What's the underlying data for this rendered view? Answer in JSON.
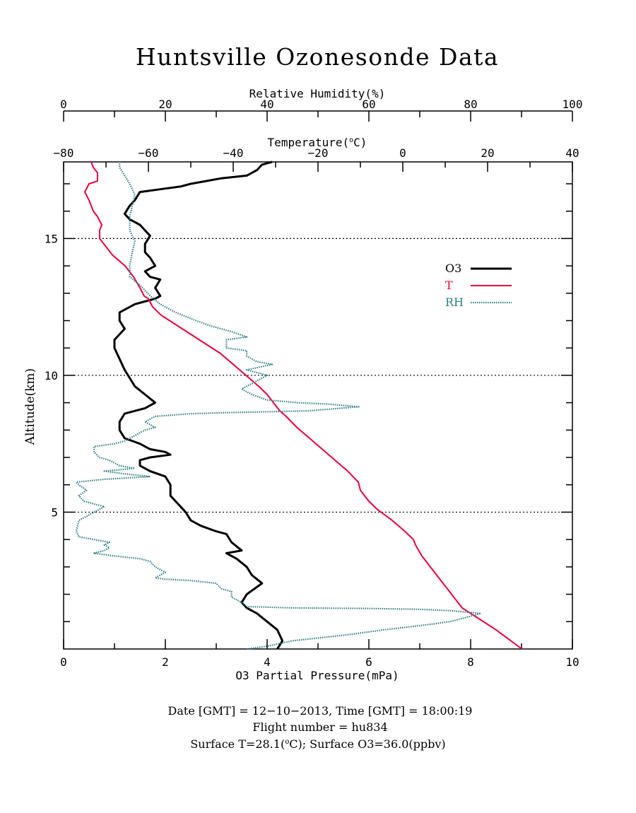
{
  "chart_data": {
    "type": "line",
    "title": "Huntsville Ozonesonde Data",
    "axes": {
      "rh": {
        "label": "Relative Humidity(%)",
        "min": 0,
        "max": 100,
        "ticks": [
          "0",
          "20",
          "40",
          "60",
          "80",
          "100"
        ]
      },
      "temp": {
        "label_main": "Temperature(",
        "label_sup": "o",
        "label_end": "C)",
        "min": -80,
        "max": 40,
        "ticks": [
          "−80",
          "−60",
          "−40",
          "−20",
          "0",
          "20",
          "40"
        ]
      },
      "o3": {
        "label": "O3 Partial Pressure(mPa)",
        "min": 0,
        "max": 10,
        "ticks": [
          "0",
          "2",
          "4",
          "6",
          "8",
          "10"
        ]
      },
      "alt": {
        "label": "Altitude(km)",
        "min": 0,
        "max": 17.8,
        "ticks": [
          5,
          10,
          15
        ],
        "tick_labels": [
          "5",
          "10",
          "15"
        ]
      }
    },
    "gridlines_y": [
      5,
      10,
      15
    ],
    "legend_position": "upper-right",
    "series": [
      {
        "name": "O3",
        "color": "#000000",
        "axis": "o3",
        "points": [
          [
            4.2,
            0.0
          ],
          [
            4.3,
            0.3
          ],
          [
            4.2,
            0.7
          ],
          [
            4.0,
            1.0
          ],
          [
            3.8,
            1.3
          ],
          [
            3.6,
            1.5
          ],
          [
            3.5,
            1.7
          ],
          [
            3.6,
            2.0
          ],
          [
            3.9,
            2.4
          ],
          [
            3.7,
            2.7
          ],
          [
            3.6,
            3.0
          ],
          [
            3.4,
            3.3
          ],
          [
            3.2,
            3.5
          ],
          [
            3.5,
            3.6
          ],
          [
            3.3,
            3.9
          ],
          [
            3.2,
            4.2
          ],
          [
            3.0,
            4.3
          ],
          [
            2.7,
            4.5
          ],
          [
            2.5,
            4.7
          ],
          [
            2.4,
            5.0
          ],
          [
            2.3,
            5.2
          ],
          [
            2.1,
            5.6
          ],
          [
            2.1,
            6.0
          ],
          [
            2.0,
            6.3
          ],
          [
            1.7,
            6.5
          ],
          [
            1.5,
            6.7
          ],
          [
            1.5,
            6.9
          ],
          [
            1.7,
            7.0
          ],
          [
            2.1,
            7.1
          ],
          [
            2.0,
            7.2
          ],
          [
            1.7,
            7.3
          ],
          [
            1.5,
            7.5
          ],
          [
            1.2,
            7.7
          ],
          [
            1.1,
            8.0
          ],
          [
            1.1,
            8.3
          ],
          [
            1.2,
            8.6
          ],
          [
            1.6,
            8.8
          ],
          [
            1.8,
            9.0
          ],
          [
            1.6,
            9.3
          ],
          [
            1.4,
            9.6
          ],
          [
            1.3,
            9.9
          ],
          [
            1.2,
            10.2
          ],
          [
            1.1,
            10.6
          ],
          [
            1.0,
            11.0
          ],
          [
            1.0,
            11.3
          ],
          [
            1.2,
            11.7
          ],
          [
            1.1,
            12.0
          ],
          [
            1.1,
            12.3
          ],
          [
            1.4,
            12.6
          ],
          [
            1.8,
            12.8
          ],
          [
            1.9,
            12.9
          ],
          [
            1.8,
            13.2
          ],
          [
            1.9,
            13.5
          ],
          [
            1.7,
            13.6
          ],
          [
            1.6,
            13.8
          ],
          [
            1.8,
            14.0
          ],
          [
            1.7,
            14.3
          ],
          [
            1.6,
            14.5
          ],
          [
            1.6,
            14.8
          ],
          [
            1.7,
            15.1
          ],
          [
            1.6,
            15.3
          ],
          [
            1.5,
            15.5
          ],
          [
            1.3,
            15.7
          ],
          [
            1.2,
            15.9
          ],
          [
            1.3,
            16.2
          ],
          [
            1.4,
            16.4
          ],
          [
            1.5,
            16.7
          ],
          [
            1.9,
            16.8
          ],
          [
            2.3,
            16.9
          ],
          [
            2.5,
            17.0
          ],
          [
            2.8,
            17.1
          ],
          [
            3.1,
            17.2
          ],
          [
            3.6,
            17.3
          ],
          [
            3.8,
            17.5
          ],
          [
            3.9,
            17.7
          ],
          [
            4.1,
            17.8
          ]
        ]
      },
      {
        "name": "T",
        "color": "#e8003a",
        "axis": "temp",
        "points": [
          [
            28.1,
            0.0
          ],
          [
            25.5,
            0.3
          ],
          [
            22.0,
            0.7
          ],
          [
            18.0,
            1.1
          ],
          [
            15.0,
            1.4
          ],
          [
            14.0,
            1.5
          ],
          [
            13.0,
            1.7
          ],
          [
            10.5,
            2.2
          ],
          [
            9.0,
            2.5
          ],
          [
            6.5,
            3.0
          ],
          [
            4.5,
            3.4
          ],
          [
            3.0,
            3.8
          ],
          [
            2.5,
            4.0
          ],
          [
            0.5,
            4.3
          ],
          [
            -2.5,
            4.7
          ],
          [
            -6.0,
            5.1
          ],
          [
            -8.0,
            5.4
          ],
          [
            -10.0,
            5.8
          ],
          [
            -10.5,
            6.1
          ],
          [
            -13.0,
            6.5
          ],
          [
            -16.0,
            6.9
          ],
          [
            -19.0,
            7.3
          ],
          [
            -22.0,
            7.7
          ],
          [
            -25.0,
            8.1
          ],
          [
            -27.5,
            8.5
          ],
          [
            -29.0,
            8.7
          ],
          [
            -30.0,
            8.9
          ],
          [
            -31.0,
            9.1
          ],
          [
            -32.0,
            9.3
          ],
          [
            -34.0,
            9.6
          ],
          [
            -37.0,
            10.0
          ],
          [
            -40.0,
            10.4
          ],
          [
            -43.0,
            10.8
          ],
          [
            -47.0,
            11.2
          ],
          [
            -51.0,
            11.6
          ],
          [
            -54.0,
            11.9
          ],
          [
            -57.0,
            12.2
          ],
          [
            -59.0,
            12.5
          ],
          [
            -60.0,
            12.8
          ],
          [
            -61.0,
            12.9
          ],
          [
            -62.0,
            13.2
          ],
          [
            -63.5,
            13.6
          ],
          [
            -65.5,
            14.0
          ],
          [
            -68.5,
            14.4
          ],
          [
            -70.0,
            14.7
          ],
          [
            -71.5,
            15.0
          ],
          [
            -71.5,
            15.3
          ],
          [
            -71.0,
            15.5
          ],
          [
            -72.0,
            15.8
          ],
          [
            -73.0,
            16.0
          ],
          [
            -74.0,
            16.4
          ],
          [
            -75.0,
            16.7
          ],
          [
            -74.0,
            17.0
          ],
          [
            -72.0,
            17.1
          ],
          [
            -72.0,
            17.4
          ],
          [
            -73.0,
            17.6
          ],
          [
            -73.5,
            17.8
          ]
        ]
      },
      {
        "name": "RH",
        "color": "#2f7f88",
        "axis": "rh",
        "points": [
          [
            36.0,
            0.0
          ],
          [
            40.0,
            0.1
          ],
          [
            45.0,
            0.3
          ],
          [
            55.0,
            0.5
          ],
          [
            63.0,
            0.7
          ],
          [
            72.0,
            0.9
          ],
          [
            76.0,
            1.0
          ],
          [
            80.0,
            1.2
          ],
          [
            82.0,
            1.3
          ],
          [
            76.0,
            1.4
          ],
          [
            70.0,
            1.45
          ],
          [
            60.0,
            1.48
          ],
          [
            45.0,
            1.5
          ],
          [
            36.0,
            1.55
          ],
          [
            35.0,
            1.7
          ],
          [
            33.0,
            1.9
          ],
          [
            33.0,
            2.1
          ],
          [
            31.0,
            2.2
          ],
          [
            30.0,
            2.4
          ],
          [
            25.0,
            2.5
          ],
          [
            20.0,
            2.55
          ],
          [
            18.0,
            2.6
          ],
          [
            20.0,
            2.8
          ],
          [
            18.0,
            3.0
          ],
          [
            17.0,
            3.2
          ],
          [
            15.0,
            3.3
          ],
          [
            10.0,
            3.4
          ],
          [
            6.0,
            3.5
          ],
          [
            8.0,
            3.6
          ],
          [
            9.0,
            3.7
          ],
          [
            8.0,
            3.8
          ],
          [
            9.0,
            3.9
          ],
          [
            6.0,
            4.0
          ],
          [
            3.0,
            4.1
          ],
          [
            2.5,
            4.3
          ],
          [
            3.0,
            4.7
          ],
          [
            8.0,
            5.2
          ],
          [
            4.0,
            5.4
          ],
          [
            3.0,
            5.6
          ],
          [
            4.5,
            5.8
          ],
          [
            3.0,
            6.0
          ],
          [
            2.5,
            6.1
          ],
          [
            8.0,
            6.2
          ],
          [
            17.0,
            6.3
          ],
          [
            12.0,
            6.4
          ],
          [
            8.0,
            6.5
          ],
          [
            14.0,
            6.6
          ],
          [
            11.0,
            6.7
          ],
          [
            9.0,
            6.9
          ],
          [
            7.0,
            7.0
          ],
          [
            6.0,
            7.2
          ],
          [
            6.0,
            7.4
          ],
          [
            10.0,
            7.5
          ],
          [
            12.0,
            7.6
          ],
          [
            14.0,
            7.8
          ],
          [
            16.0,
            8.0
          ],
          [
            18.0,
            8.1
          ],
          [
            16.0,
            8.3
          ],
          [
            18.0,
            8.5
          ],
          [
            25.0,
            8.6
          ],
          [
            35.0,
            8.65
          ],
          [
            48.0,
            8.7
          ],
          [
            58.0,
            8.85
          ],
          [
            52.0,
            8.95
          ],
          [
            46.0,
            9.0
          ],
          [
            40.0,
            9.1
          ],
          [
            37.0,
            9.3
          ],
          [
            35.0,
            9.5
          ],
          [
            38.0,
            9.8
          ],
          [
            40.0,
            10.0
          ],
          [
            36.0,
            10.2
          ],
          [
            41.0,
            10.4
          ],
          [
            38.0,
            10.5
          ],
          [
            36.0,
            10.7
          ],
          [
            36.0,
            10.9
          ],
          [
            32.0,
            11.0
          ],
          [
            32.0,
            11.3
          ],
          [
            36.0,
            11.4
          ],
          [
            33.0,
            11.6
          ],
          [
            29.0,
            11.8
          ],
          [
            26.0,
            12.0
          ],
          [
            22.0,
            12.3
          ],
          [
            19.0,
            12.6
          ],
          [
            17.0,
            12.9
          ],
          [
            15.0,
            13.3
          ],
          [
            13.0,
            13.6
          ],
          [
            13.0,
            14.0
          ],
          [
            13.5,
            14.5
          ],
          [
            14.0,
            14.9
          ],
          [
            13.0,
            15.3
          ],
          [
            13.0,
            15.8
          ],
          [
            13.5,
            16.2
          ],
          [
            14.0,
            16.6
          ],
          [
            13.0,
            17.0
          ],
          [
            12.0,
            17.3
          ],
          [
            11.0,
            17.6
          ],
          [
            11.0,
            17.8
          ]
        ]
      }
    ],
    "footer": {
      "line1": "Date [GMT] = 12−10−2013,  Time [GMT] = 18:00:19",
      "line2": "Flight number = hu834",
      "line3a": "Surface T=28.1(",
      "line3sup": "o",
      "line3b": "C); Surface O3=36.0(ppbv)"
    }
  }
}
